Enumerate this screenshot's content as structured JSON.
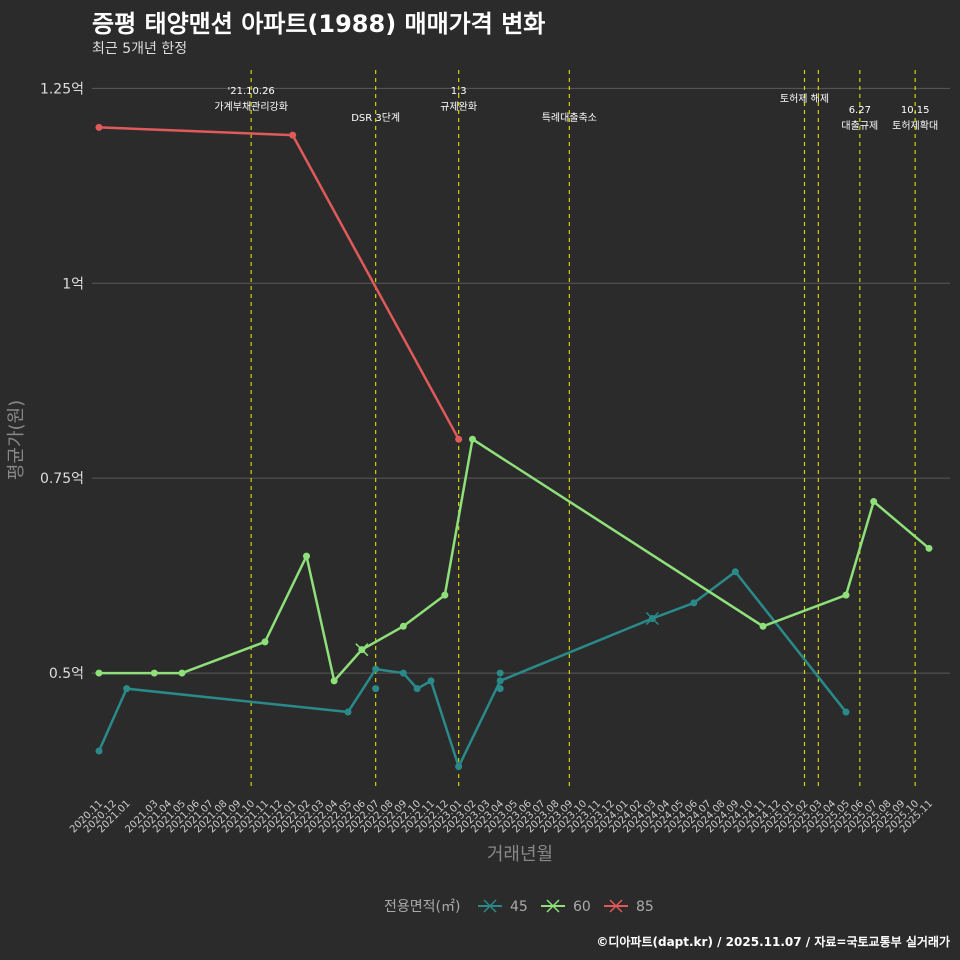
{
  "chart_data": {
    "type": "line",
    "title": "증평 태양맨션 아파트(1988) 매매가격 변화",
    "subtitle": "최근 5개년 한정",
    "xlabel": "거래년월",
    "ylabel": "평균가(원)",
    "caption": "©디아파트(dapt.kr) / 2025.11.07 / 자료=국토교통부 실거래가",
    "y_unit_suffix": "억",
    "ylim": [
      0.35,
      1.28
    ],
    "yticks": [
      0.5,
      0.75,
      1.0,
      1.25
    ],
    "ytick_labels": [
      "0.5억",
      "0.75억",
      "1억",
      "1.25억"
    ],
    "x_months": [
      "2020.11",
      "2020.12",
      "2021.01",
      "2021.02",
      "2021.03",
      "2021.04",
      "2021.05",
      "2021.06",
      "2021.07",
      "2021.08",
      "2021.09",
      "2021.10",
      "2021.11",
      "2021.12",
      "2022.01",
      "2022.02",
      "2022.03",
      "2022.04",
      "2022.05",
      "2022.06",
      "2022.07",
      "2022.08",
      "2022.09",
      "2022.10",
      "2022.11",
      "2022.12",
      "2023.01",
      "2023.02",
      "2023.03",
      "2023.04",
      "2023.05",
      "2023.06",
      "2023.07",
      "2023.08",
      "2023.09",
      "2023.10",
      "2023.11",
      "2023.12",
      "2024.01",
      "2024.02",
      "2024.03",
      "2024.04",
      "2024.05",
      "2024.06",
      "2024.07",
      "2024.08",
      "2024.09",
      "2024.10",
      "2024.11",
      "2024.12",
      "2025.01",
      "2025.02",
      "2025.03",
      "2025.04",
      "2025.05",
      "2025.06",
      "2025.07",
      "2025.08",
      "2025.09",
      "2025.10",
      "2025.11"
    ],
    "x_tick_labels": [
      "2020.11",
      "2020.12",
      "2021.01",
      "2021.03",
      "2021.04",
      "2021.05",
      "2021.06",
      "2021.07",
      "2021.08",
      "2021.09",
      "2021.10",
      "2021.11",
      "2021.12",
      "2022.01",
      "2022.02",
      "2022.03",
      "2022.04",
      "2022.05",
      "2022.06",
      "2022.07",
      "2022.08",
      "2022.09",
      "2022.10",
      "2022.11",
      "2022.12",
      "2023.01",
      "2023.02",
      "2023.03",
      "2023.04",
      "2023.05",
      "2023.06",
      "2023.07",
      "2023.08",
      "2023.09",
      "2023.10",
      "2023.11",
      "2023.12",
      "2024.01",
      "2024.02",
      "2024.03",
      "2024.04",
      "2024.05",
      "2024.06",
      "2024.07",
      "2024.08",
      "2024.09",
      "2024.10",
      "2024.11",
      "2024.12",
      "2025.01",
      "2025.02",
      "2025.03",
      "2025.04",
      "2025.05",
      "2025.06",
      "2025.07",
      "2025.08",
      "2025.09",
      "2025.10",
      "2025.11"
    ],
    "events": [
      {
        "month": "2021.10",
        "lines": [
          "'21.10.26",
          "가계부채관리강화"
        ],
        "level": 1
      },
      {
        "month": "2022.07",
        "lines": [
          "DSR 3단계"
        ],
        "level": 2
      },
      {
        "month": "2023.01",
        "lines": [
          "1.3",
          "규제완화"
        ],
        "level": 1
      },
      {
        "month": "2023.09",
        "lines": [
          "특례대출축소"
        ],
        "level": 2
      },
      {
        "month": "2025.02",
        "lines": [
          "토허제 해제"
        ],
        "level": 1
      },
      {
        "month": "2025.03",
        "lines": [],
        "level": 1
      },
      {
        "month": "2025.06",
        "lines": [
          "6.27",
          "대출규제"
        ],
        "level": 3
      },
      {
        "month": "2025.10",
        "lines": [
          "10.15",
          "토허제확대"
        ],
        "level": 3
      }
    ],
    "series": [
      {
        "name": "45",
        "color": "#2a8a8a",
        "points": [
          {
            "x": "2020.11",
            "y": 0.4
          },
          {
            "x": "2021.01",
            "y": 0.48
          },
          {
            "x": "2022.05",
            "y": 0.45
          },
          {
            "x": "2022.07",
            "y": 0.505
          },
          {
            "x": "2022.09",
            "y": 0.5
          },
          {
            "x": "2022.10",
            "y": 0.48
          },
          {
            "x": "2022.11",
            "y": 0.49
          },
          {
            "x": "2023.01",
            "y": 0.38
          },
          {
            "x": "2023.04",
            "y": 0.49
          },
          {
            "x": "2024.03",
            "y": 0.57
          },
          {
            "x": "2024.06",
            "y": 0.59
          },
          {
            "x": "2024.09",
            "y": 0.63
          },
          {
            "x": "2025.05",
            "y": 0.45
          }
        ],
        "extra_points": [
          {
            "x": "2022.07",
            "y": 0.48
          },
          {
            "x": "2023.04",
            "y": 0.48
          },
          {
            "x": "2023.04",
            "y": 0.5
          }
        ],
        "cross_points": [
          {
            "x": "2024.03",
            "y": 0.57
          }
        ]
      },
      {
        "name": "60",
        "color": "#8fe07a",
        "points": [
          {
            "x": "2020.11",
            "y": 0.5
          },
          {
            "x": "2021.03",
            "y": 0.5
          },
          {
            "x": "2021.05",
            "y": 0.5
          },
          {
            "x": "2021.11",
            "y": 0.54
          },
          {
            "x": "2022.02",
            "y": 0.65
          },
          {
            "x": "2022.04",
            "y": 0.49
          },
          {
            "x": "2022.06",
            "y": 0.53
          },
          {
            "x": "2022.09",
            "y": 0.56
          },
          {
            "x": "2022.12",
            "y": 0.6
          },
          {
            "x": "2023.02",
            "y": 0.8
          },
          {
            "x": "2024.11",
            "y": 0.56
          },
          {
            "x": "2025.05",
            "y": 0.6
          },
          {
            "x": "2025.07",
            "y": 0.72
          },
          {
            "x": "2025.11",
            "y": 0.66
          }
        ],
        "extra_points": [],
        "cross_points": [
          {
            "x": "2022.06",
            "y": 0.53
          }
        ]
      },
      {
        "name": "85",
        "color": "#e05a5a",
        "points": [
          {
            "x": "2020.11",
            "y": 1.2
          },
          {
            "x": "2022.01",
            "y": 1.19
          },
          {
            "x": "2023.01",
            "y": 0.8
          }
        ],
        "extra_points": [],
        "cross_points": []
      }
    ],
    "legend_title": "전용면적(㎡)",
    "legend_position": "bottom",
    "colors": {
      "background": "#2b2b2b",
      "grid": "#5a5a5a",
      "event_line": "#d4d400"
    }
  }
}
